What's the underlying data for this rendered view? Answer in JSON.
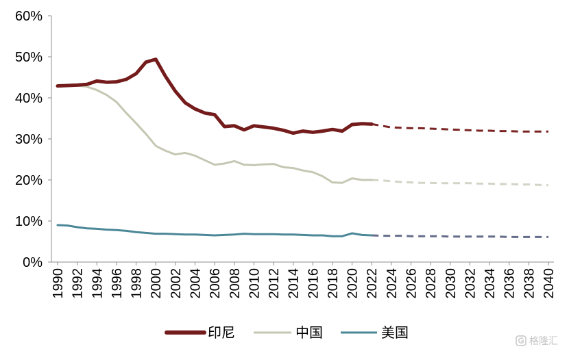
{
  "chart_data": {
    "type": "line",
    "title": "",
    "xlabel": "",
    "ylabel": "",
    "xlim": [
      1990,
      2040
    ],
    "ylim": [
      0,
      60
    ],
    "y_ticks": [
      0,
      10,
      20,
      30,
      40,
      50,
      60
    ],
    "y_tick_labels": [
      "0%",
      "10%",
      "20%",
      "30%",
      "40%",
      "50%",
      "60%"
    ],
    "x_tick_labels": [
      "1990",
      "1992",
      "1994",
      "1996",
      "1998",
      "2000",
      "2002",
      "2004",
      "2006",
      "2008",
      "2010",
      "2012",
      "2014",
      "2016",
      "2018",
      "2020",
      "2022",
      "2024",
      "2026",
      "2028",
      "2030",
      "2032",
      "2034",
      "2036",
      "2038",
      "2040"
    ],
    "grid": false,
    "legend": "bottom",
    "dashed_from_year": 2022,
    "x": [
      1990,
      1991,
      1992,
      1993,
      1994,
      1995,
      1996,
      1997,
      1998,
      1999,
      2000,
      2001,
      2002,
      2003,
      2004,
      2005,
      2006,
      2007,
      2008,
      2009,
      2010,
      2011,
      2012,
      2013,
      2014,
      2015,
      2016,
      2017,
      2018,
      2019,
      2020,
      2021,
      2022,
      2023,
      2024,
      2025,
      2026,
      2027,
      2028,
      2029,
      2030,
      2031,
      2032,
      2033,
      2034,
      2035,
      2036,
      2037,
      2038,
      2039,
      2040
    ],
    "series": [
      {
        "name": "印尼",
        "color": "#741b1b",
        "forecast_color": "#7a2323",
        "values": [
          42.9,
          43.0,
          43.1,
          43.3,
          44.1,
          43.8,
          43.9,
          44.5,
          45.9,
          48.7,
          49.4,
          45.2,
          41.6,
          38.8,
          37.3,
          36.3,
          35.9,
          33.0,
          33.2,
          32.2,
          33.2,
          32.9,
          32.6,
          32.1,
          31.4,
          31.9,
          31.6,
          31.9,
          32.3,
          31.9,
          33.5,
          33.7,
          33.6,
          33.2,
          32.8,
          32.7,
          32.6,
          32.6,
          32.5,
          32.4,
          32.3,
          32.2,
          32.1,
          32.0,
          32.0,
          31.9,
          31.9,
          31.8,
          31.8,
          31.8,
          31.8
        ]
      },
      {
        "name": "中国",
        "color": "#c6c7b3",
        "forecast_color": "#d3d3c7",
        "values": [
          43.1,
          43.1,
          43.0,
          42.7,
          41.9,
          40.7,
          39.0,
          36.3,
          33.8,
          31.2,
          28.3,
          27.1,
          26.2,
          26.6,
          25.9,
          24.8,
          23.7,
          24.0,
          24.6,
          23.7,
          23.6,
          23.8,
          23.9,
          23.1,
          22.9,
          22.3,
          21.9,
          20.9,
          19.4,
          19.3,
          20.4,
          20.0,
          20.0,
          19.9,
          19.7,
          19.5,
          19.4,
          19.3,
          19.3,
          19.2,
          19.2,
          19.2,
          19.2,
          19.1,
          19.1,
          19.0,
          19.0,
          18.9,
          18.9,
          18.8,
          18.7
        ]
      },
      {
        "name": "美国",
        "color": "#4b8797",
        "forecast_color": "#646c8a",
        "values": [
          9.0,
          8.9,
          8.5,
          8.2,
          8.1,
          7.9,
          7.8,
          7.6,
          7.3,
          7.1,
          6.9,
          6.9,
          6.8,
          6.7,
          6.7,
          6.6,
          6.5,
          6.6,
          6.7,
          6.9,
          6.8,
          6.8,
          6.8,
          6.7,
          6.7,
          6.6,
          6.5,
          6.5,
          6.3,
          6.3,
          7.0,
          6.6,
          6.5,
          6.4,
          6.4,
          6.4,
          6.3,
          6.3,
          6.3,
          6.3,
          6.2,
          6.2,
          6.2,
          6.2,
          6.2,
          6.2,
          6.1,
          6.1,
          6.1,
          6.1,
          6.1
        ]
      }
    ]
  },
  "watermark": {
    "text": "格隆汇",
    "icon": "glh-logo-icon",
    "color": "#c4c4c4"
  }
}
